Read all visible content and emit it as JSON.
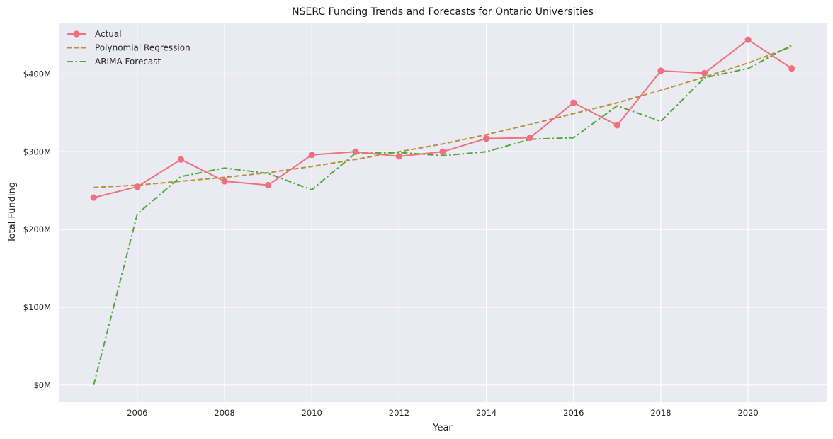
{
  "chart_data": {
    "type": "line",
    "title": "NSERC Funding Trends and Forecasts for Ontario Universities",
    "xlabel": "Year",
    "ylabel": "Total Funding",
    "xlim": [
      2004.2,
      2021.8
    ],
    "ylim": [
      -22,
      465
    ],
    "xticks": [
      2006,
      2008,
      2010,
      2012,
      2014,
      2016,
      2018,
      2020
    ],
    "yticks": [
      0,
      100,
      200,
      300,
      400
    ],
    "ytick_labels": [
      "$0M",
      "$100M",
      "$200M",
      "$300M",
      "$400M"
    ],
    "grid": true,
    "legend_position": "top-left",
    "x": [
      2005,
      2006,
      2007,
      2008,
      2009,
      2010,
      2011,
      2012,
      2013,
      2014,
      2015,
      2016,
      2017,
      2018,
      2019,
      2020,
      2021
    ],
    "series": [
      {
        "name": "Actual",
        "style": "solid-markers",
        "color": "#f0707e",
        "values": [
          241,
          255,
          290,
          262,
          257,
          296,
          300,
          294,
          300,
          317,
          318,
          363,
          334,
          404,
          401,
          444,
          407
        ]
      },
      {
        "name": "Polynomial Regression",
        "style": "dashed",
        "color": "#b8903a",
        "values": [
          254,
          257,
          262,
          267,
          273,
          281,
          290,
          300,
          310,
          322,
          335,
          349,
          363,
          379,
          396,
          414,
          435
        ]
      },
      {
        "name": "ARIMA Forecast",
        "style": "dashdot",
        "color": "#4eaa36",
        "values": [
          0,
          220,
          268,
          279,
          272,
          251,
          298,
          299,
          295,
          300,
          316,
          318,
          359,
          339,
          395,
          407,
          437
        ]
      }
    ]
  }
}
